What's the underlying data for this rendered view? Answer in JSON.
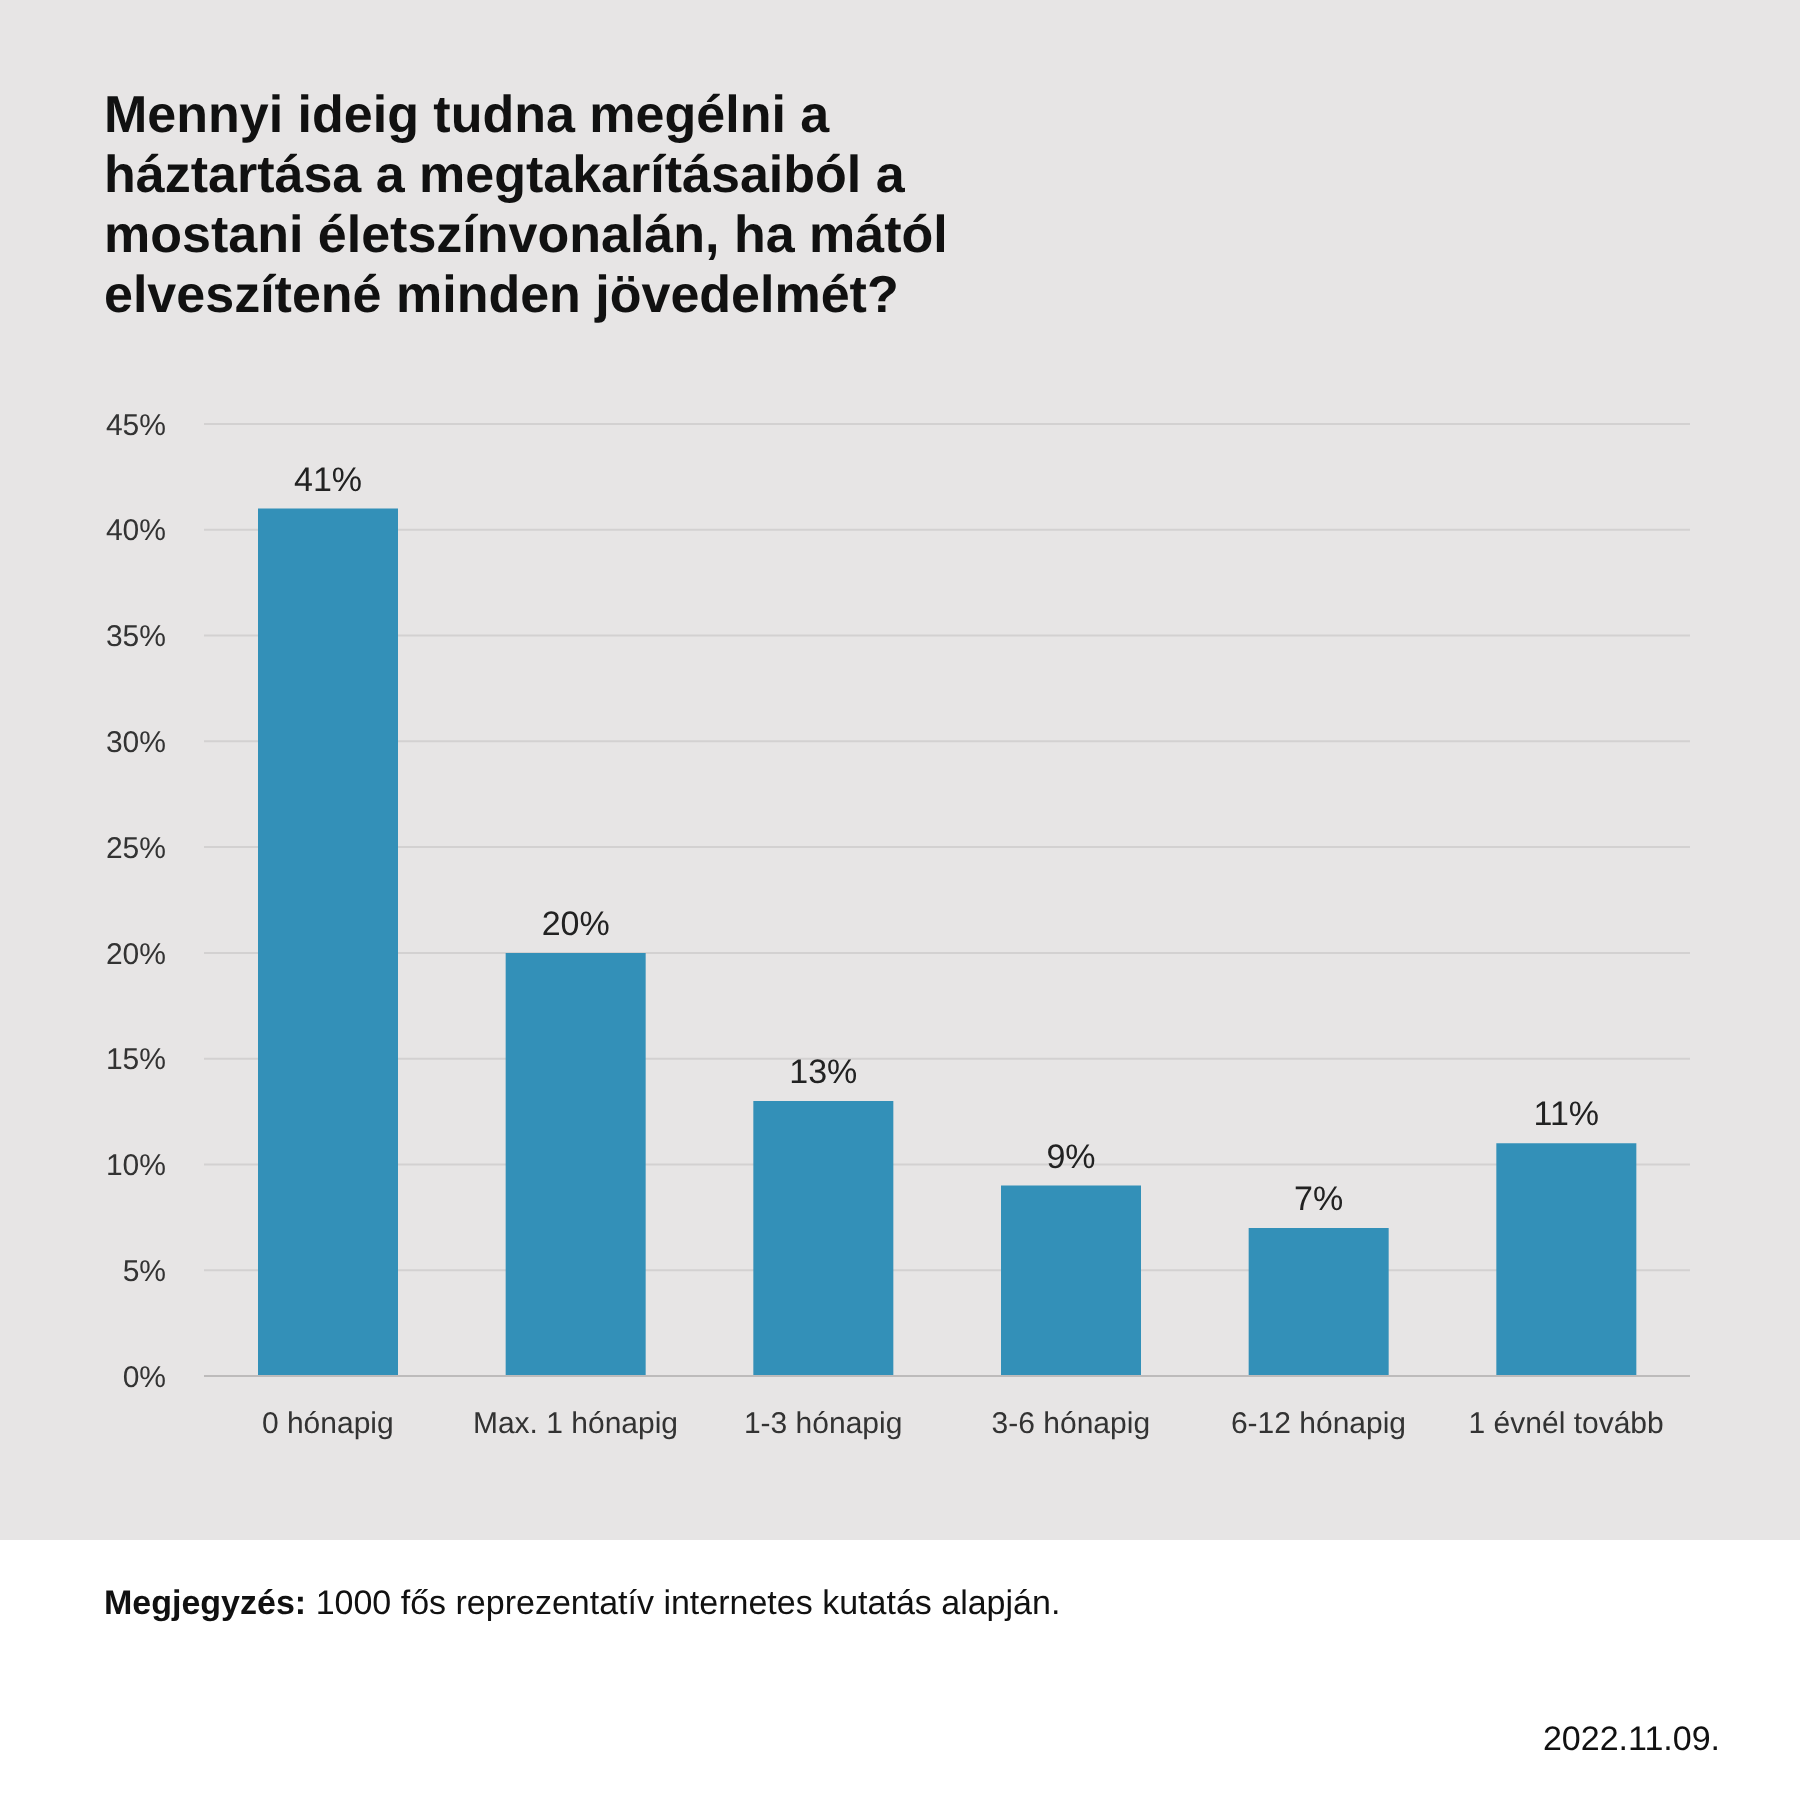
{
  "chart_data": {
    "type": "bar",
    "title": "Mennyi ideig tudna megélni a háztartása a megtakarításaiból a mostani életszínvonalán, ha mától elveszítené minden jövedelmét?",
    "categories": [
      "0 hónapig",
      "Max. 1 hónapig",
      "1-3 hónapig",
      "3-6 hónapig",
      "6-12 hónapig",
      "1 évnél tovább"
    ],
    "values": [
      41,
      20,
      13,
      9,
      7,
      11
    ],
    "value_labels": [
      "41%",
      "20%",
      "13%",
      "9%",
      "7%",
      "11%"
    ],
    "color": "#3390b8",
    "ylim": [
      0,
      45
    ],
    "yticks": [
      {
        "value": 0,
        "label": "0%"
      },
      {
        "value": 5,
        "label": "5%"
      },
      {
        "value": 10,
        "label": "10%"
      },
      {
        "value": 15,
        "label": "15%"
      },
      {
        "value": 20,
        "label": "20%"
      },
      {
        "value": 25,
        "label": "25%"
      },
      {
        "value": 30,
        "label": "30%"
      },
      {
        "value": 35,
        "label": "35%"
      },
      {
        "value": 40,
        "label": "40%"
      },
      {
        "value": 45,
        "label": "45%"
      }
    ],
    "grid": "y",
    "annotations": [
      "Megjegyzés: 1000 fős reprezentatív internetes kutatás alapján.",
      "2022.11.09."
    ]
  }
}
